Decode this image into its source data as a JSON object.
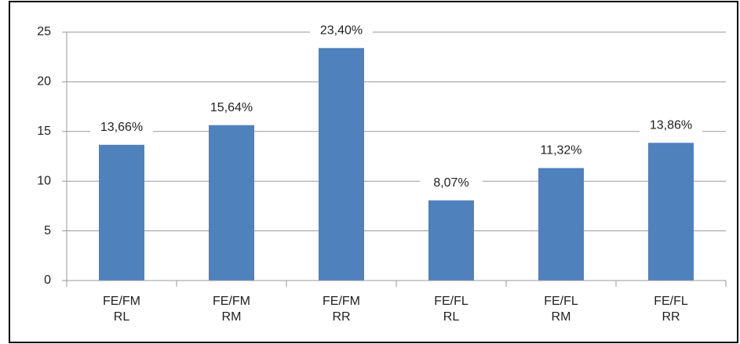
{
  "chart_data": {
    "type": "bar",
    "categories": [
      "FE/FM\nRL",
      "FE/FM\nRM",
      "FE/FM\nRR",
      "FE/FL\nRL",
      "FE/FL\nRM",
      "FE/FL\nRR"
    ],
    "values": [
      13.66,
      15.64,
      23.4,
      8.07,
      11.32,
      13.86
    ],
    "value_labels": [
      "13,66%",
      "15,64%",
      "23,40%",
      "8,07%",
      "11,32%",
      "13,86%"
    ],
    "color": "#4f81bd",
    "ylim": [
      0,
      25
    ],
    "yticks": [
      0,
      5,
      10,
      15,
      20,
      25
    ],
    "grid": true
  }
}
